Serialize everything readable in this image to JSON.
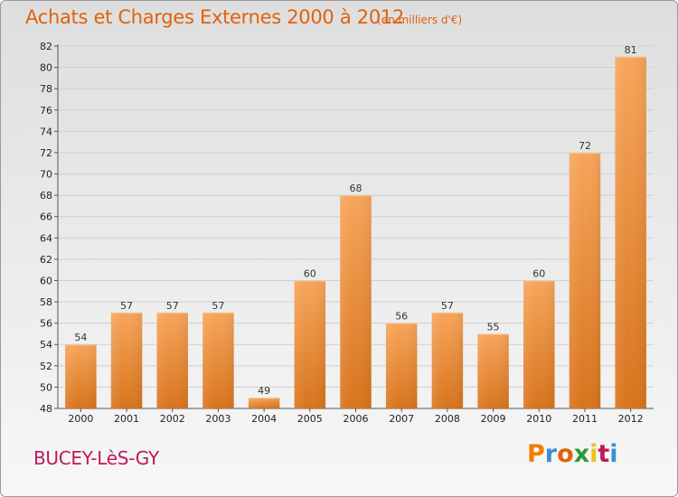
{
  "header": {
    "title": "Achats et Charges Externes 2000 à 2012",
    "subtitle": "(en milliers d'€)"
  },
  "footer": {
    "commune": "BUCEY-LèS-GY",
    "logo_text": "Proxiti",
    "logo_colors": [
      "#f07d00",
      "#3a8fd6",
      "#e0620a",
      "#2c9a3a",
      "#e8c21a",
      "#c0185a",
      "#3a8fd6"
    ]
  },
  "colors": {
    "bar_top": "#f7a55a",
    "bar_bottom": "#d8741c",
    "accent": "#e0620a"
  },
  "chart_data": {
    "type": "bar",
    "categories": [
      "2000",
      "2001",
      "2002",
      "2003",
      "2004",
      "2005",
      "2006",
      "2007",
      "2008",
      "2009",
      "2010",
      "2011",
      "2012"
    ],
    "values": [
      54,
      57,
      57,
      57,
      49,
      60,
      68,
      56,
      57,
      55,
      60,
      72,
      81
    ],
    "ylim": [
      48,
      82
    ],
    "yticks": [
      48,
      50,
      52,
      54,
      56,
      58,
      60,
      62,
      64,
      66,
      68,
      70,
      72,
      74,
      76,
      78,
      80,
      82
    ],
    "grid": true,
    "data_labels": true
  }
}
